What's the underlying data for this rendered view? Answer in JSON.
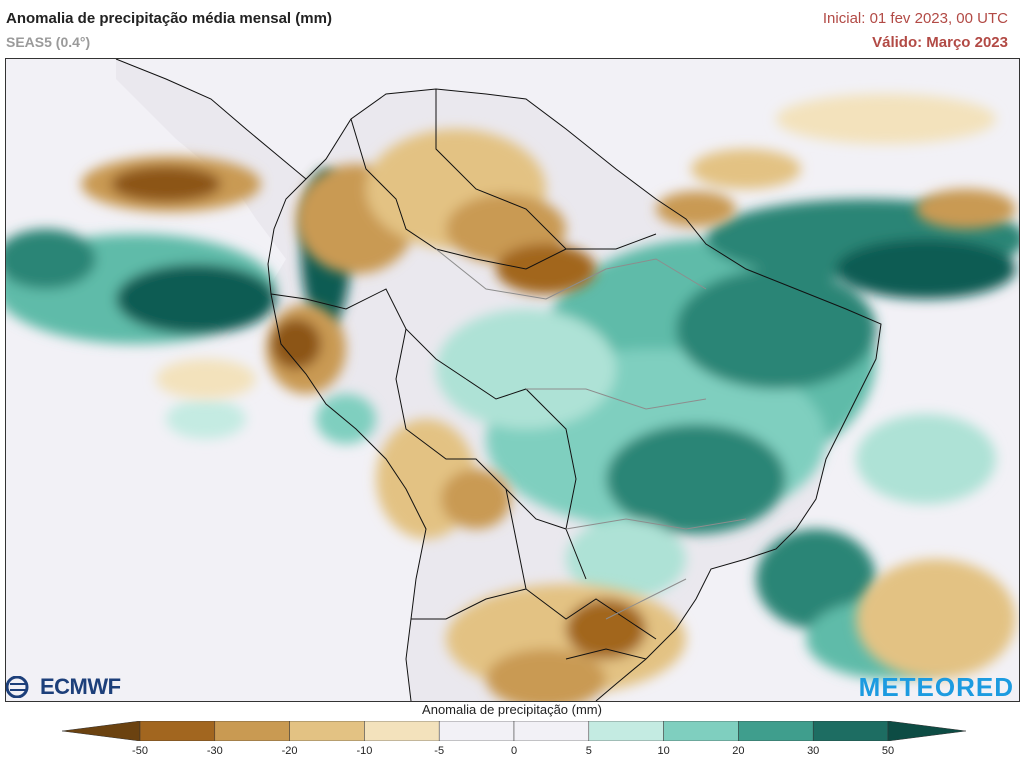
{
  "header": {
    "title": "Anomalia de precipitação média mensal (mm)",
    "model": "SEAS5 (0.4°)",
    "initial": "Inicial: 01 fev 2023, 00 UTC",
    "valid": "Válido: Março 2023"
  },
  "logos": {
    "ecmwf": "ECMWF",
    "meteored": "METEORED"
  },
  "legend": {
    "title": "Anomalia de precipitação (mm)",
    "ticks": [
      "-50",
      "-30",
      "-20",
      "-10",
      "-5",
      "0",
      "5",
      "10",
      "20",
      "30",
      "50"
    ],
    "colors": [
      "#6b4210",
      "#a2661f",
      "#c99a52",
      "#e3c283",
      "#f3e2bc",
      "#f2f1f6",
      "#f2f1f6",
      "#c4ebe2",
      "#7fcfbf",
      "#3f9e8d",
      "#1d6d62",
      "#0d4c44"
    ]
  },
  "colors": {
    "neg_strong": "#8c5517",
    "neg_mid": "#c99a52",
    "neg_light": "#e7cc92",
    "pos_light": "#aee2d6",
    "pos_mid": "#5fbba9",
    "pos_strong": "#2a8576",
    "pos_very": "#0f5c52",
    "land": "#eae8ee",
    "ocean": "#f2f1f6"
  }
}
